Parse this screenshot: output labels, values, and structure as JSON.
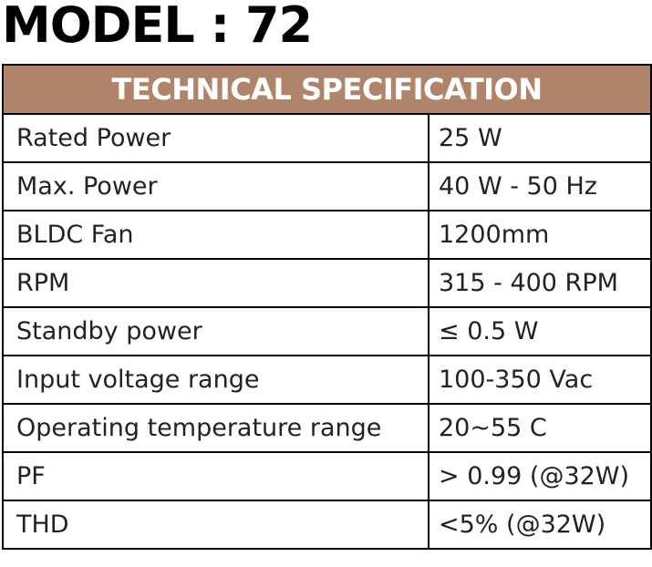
{
  "header": {
    "title": "MODEL : 72"
  },
  "table": {
    "title": "TECHNICAL SPECIFICATION",
    "rows": [
      [
        "Rated Power",
        "25 W"
      ],
      [
        "Max. Power",
        "40 W - 50 Hz"
      ],
      [
        "BLDC Fan",
        "1200mm"
      ],
      [
        "RPM",
        "315 - 400 RPM"
      ],
      [
        "Standby power",
        "≤ 0.5 W"
      ],
      [
        "Input voltage range",
        "100-350 Vac"
      ],
      [
        "Operating temperature range",
        "20~55 C"
      ],
      [
        "PF",
        "> 0.99 (@32W)"
      ],
      [
        "THD",
        "<5% (@32W)"
      ]
    ]
  }
}
